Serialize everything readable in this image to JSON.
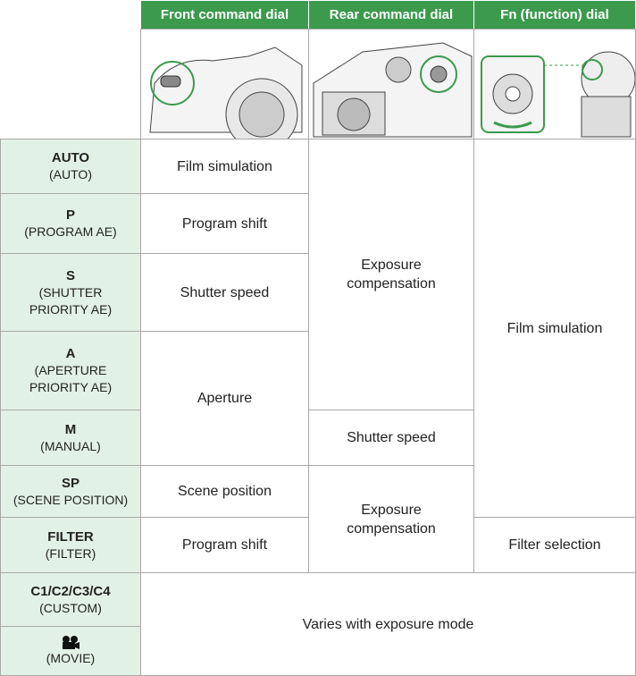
{
  "table": {
    "columns": [
      "Front command dial",
      "Rear command dial",
      "Fn (function) dial"
    ],
    "rows": [
      {
        "mode": "AUTO",
        "description": "(AUTO)"
      },
      {
        "mode": "P",
        "description": "(PROGRAM AE)"
      },
      {
        "mode": "S",
        "description": "(SHUTTER PRIORITY AE)"
      },
      {
        "mode": "A",
        "description": "(APERTURE PRIORITY AE)"
      },
      {
        "mode": "M",
        "description": "(MANUAL)"
      },
      {
        "mode": "SP",
        "description": "(SCENE POSITION)"
      },
      {
        "mode": "FILTER",
        "description": "(FILTER)"
      },
      {
        "mode": "C1/C2/C3/C4",
        "description": "(CUSTOM)"
      },
      {
        "description": "(MOVIE)"
      }
    ],
    "cells": [
      "Film simulation",
      "Program shift",
      "Shutter speed",
      "Aperture",
      "Scene position",
      "Program shift",
      "Exposure compensation",
      "Shutter speed",
      "Exposure compensation",
      "Film simulation",
      "Filter selection",
      "Varies with exposure mode"
    ]
  }
}
